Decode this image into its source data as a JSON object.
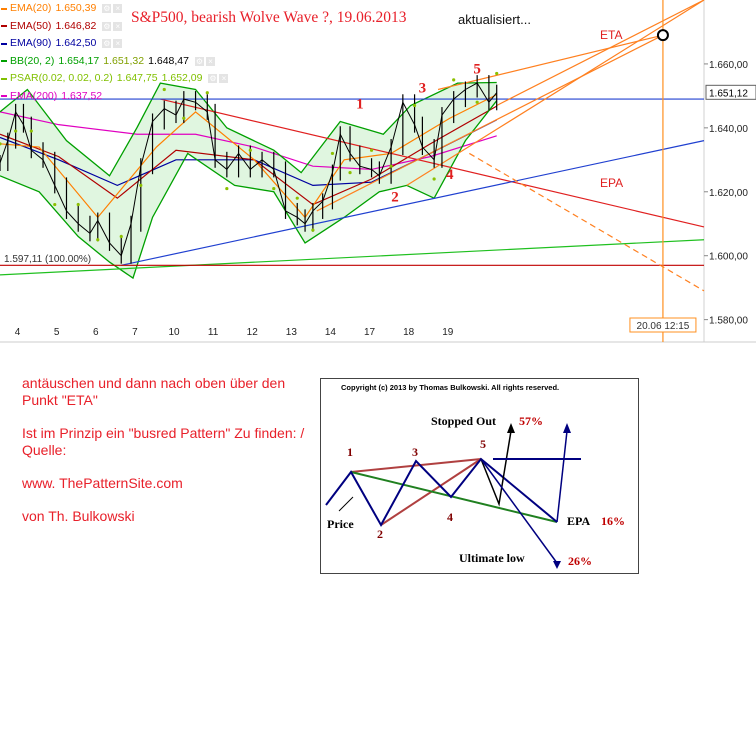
{
  "title": "S&P500, bearish Wolve Wave ?,  19.06.2013",
  "subtitle": "aktualisiert...",
  "legend": [
    {
      "name": "EMA(20)",
      "values": [
        "1.650,39"
      ],
      "color": "#ff7f00"
    },
    {
      "name": "EMA(50)",
      "values": [
        "1.646,82"
      ],
      "color": "#b00000"
    },
    {
      "name": "EMA(90)",
      "values": [
        "1.642,50"
      ],
      "color": "#0000a0"
    },
    {
      "name": "BB(20, 2)",
      "values": [
        "1.654,17",
        "1.651,32",
        "1.648,47"
      ],
      "color": "#00a000"
    },
    {
      "name": "PSAR(0.02, 0.02, 0.2)",
      "values": [
        "1.647,75",
        "1.652,09"
      ],
      "color": "#80c000"
    },
    {
      "name": "EMA(200)",
      "values": [
        "1.637,52"
      ],
      "color": "#e000c0"
    }
  ],
  "chart_data": {
    "type": "line",
    "x_ticks": [
      "4",
      "5",
      "6",
      "7",
      "10",
      "11",
      "12",
      "13",
      "14",
      "17",
      "18",
      "19"
    ],
    "y_ticks": [
      "1.660,00",
      "1.640,00",
      "1.620,00",
      "1.600,00",
      "1.580,00"
    ],
    "y_tick_values": [
      1660,
      1640,
      1620,
      1600,
      1580
    ],
    "ylim": [
      1573,
      1680
    ],
    "last_price_label": "1.651,12",
    "last_price": 1651.12,
    "low_label": "1.597,11 (100.00%)",
    "low_value": 1597.11,
    "time_marker_label": "20.06 12:15",
    "time_marker_x": 20.45,
    "labels": {
      "eta": "ETA",
      "epa": "EPA"
    },
    "close": [
      {
        "x": 3.5,
        "y": 1629
      },
      {
        "x": 3.7,
        "y": 1636
      },
      {
        "x": 3.9,
        "y": 1645
      },
      {
        "x": 4.1,
        "y": 1641
      },
      {
        "x": 4.3,
        "y": 1633
      },
      {
        "x": 4.6,
        "y": 1630
      },
      {
        "x": 4.9,
        "y": 1622
      },
      {
        "x": 5.2,
        "y": 1614
      },
      {
        "x": 5.5,
        "y": 1610
      },
      {
        "x": 5.8,
        "y": 1607
      },
      {
        "x": 6.0,
        "y": 1611
      },
      {
        "x": 6.3,
        "y": 1604
      },
      {
        "x": 6.6,
        "y": 1600
      },
      {
        "x": 6.85,
        "y": 1610
      },
      {
        "x": 7.1,
        "y": 1628
      },
      {
        "x": 7.4,
        "y": 1642
      },
      {
        "x": 7.7,
        "y": 1646
      },
      {
        "x": 8.0,
        "y": 1644
      },
      {
        "x": 8.2,
        "y": 1649
      },
      {
        "x": 8.5,
        "y": 1648
      },
      {
        "x": 8.8,
        "y": 1645
      },
      {
        "x": 9.0,
        "y": 1630
      },
      {
        "x": 9.3,
        "y": 1627
      },
      {
        "x": 9.6,
        "y": 1632
      },
      {
        "x": 9.9,
        "y": 1627
      },
      {
        "x": 10.2,
        "y": 1630
      },
      {
        "x": 10.5,
        "y": 1627
      },
      {
        "x": 10.8,
        "y": 1614
      },
      {
        "x": 11.1,
        "y": 1612
      },
      {
        "x": 11.3,
        "y": 1610
      },
      {
        "x": 11.5,
        "y": 1614
      },
      {
        "x": 11.75,
        "y": 1617
      },
      {
        "x": 12.0,
        "y": 1626
      },
      {
        "x": 12.2,
        "y": 1638
      },
      {
        "x": 12.45,
        "y": 1632
      },
      {
        "x": 12.7,
        "y": 1628
      },
      {
        "x": 13.0,
        "y": 1627
      },
      {
        "x": 13.2,
        "y": 1625
      },
      {
        "x": 13.5,
        "y": 1634
      },
      {
        "x": 13.8,
        "y": 1648
      },
      {
        "x": 14.1,
        "y": 1641
      },
      {
        "x": 14.3,
        "y": 1634
      },
      {
        "x": 14.6,
        "y": 1630
      },
      {
        "x": 14.8,
        "y": 1644
      },
      {
        "x": 15.1,
        "y": 1649
      },
      {
        "x": 15.4,
        "y": 1652
      },
      {
        "x": 15.7,
        "y": 1654
      },
      {
        "x": 16.0,
        "y": 1648
      },
      {
        "x": 16.2,
        "y": 1651
      }
    ],
    "overlays": [
      {
        "name": "EMA(200)",
        "color": "#e000c0",
        "points": [
          {
            "x": 3.5,
            "y": 1645
          },
          {
            "x": 5.0,
            "y": 1641
          },
          {
            "x": 7.0,
            "y": 1638
          },
          {
            "x": 8.5,
            "y": 1638
          },
          {
            "x": 10.0,
            "y": 1634
          },
          {
            "x": 11.5,
            "y": 1628
          },
          {
            "x": 13.0,
            "y": 1627
          },
          {
            "x": 14.5,
            "y": 1631
          },
          {
            "x": 16.2,
            "y": 1637.5
          }
        ]
      },
      {
        "name": "EMA(90)",
        "color": "#0000a0",
        "points": [
          {
            "x": 3.5,
            "y": 1637
          },
          {
            "x": 5.0,
            "y": 1630
          },
          {
            "x": 6.5,
            "y": 1622
          },
          {
            "x": 8.0,
            "y": 1630
          },
          {
            "x": 10.0,
            "y": 1630
          },
          {
            "x": 11.5,
            "y": 1622
          },
          {
            "x": 13.0,
            "y": 1623
          },
          {
            "x": 14.5,
            "y": 1632
          },
          {
            "x": 16.2,
            "y": 1642.5
          }
        ]
      },
      {
        "name": "EMA(50)",
        "color": "#b00000",
        "points": [
          {
            "x": 3.5,
            "y": 1638
          },
          {
            "x": 5.0,
            "y": 1631
          },
          {
            "x": 6.5,
            "y": 1618
          },
          {
            "x": 8.0,
            "y": 1633
          },
          {
            "x": 10.0,
            "y": 1630
          },
          {
            "x": 11.5,
            "y": 1616
          },
          {
            "x": 13.0,
            "y": 1624
          },
          {
            "x": 14.5,
            "y": 1635
          },
          {
            "x": 16.2,
            "y": 1646.8
          }
        ]
      },
      {
        "name": "EMA(20)",
        "color": "#ff7f00",
        "points": [
          {
            "x": 3.5,
            "y": 1635
          },
          {
            "x": 4.5,
            "y": 1634
          },
          {
            "x": 6.0,
            "y": 1612
          },
          {
            "x": 7.5,
            "y": 1634
          },
          {
            "x": 8.5,
            "y": 1645
          },
          {
            "x": 10.0,
            "y": 1630
          },
          {
            "x": 11.3,
            "y": 1612
          },
          {
            "x": 12.3,
            "y": 1630
          },
          {
            "x": 13.5,
            "y": 1632
          },
          {
            "x": 15.0,
            "y": 1643
          },
          {
            "x": 16.2,
            "y": 1650.4
          }
        ]
      },
      {
        "name": "BB(20, 2)",
        "color": "#00a000",
        "points": [
          {
            "x": 3.5,
            "y": 1645
          },
          {
            "x": 4.2,
            "y": 1652
          },
          {
            "x": 5.2,
            "y": 1636
          },
          {
            "x": 6.3,
            "y": 1625
          },
          {
            "x": 7.0,
            "y": 1640
          },
          {
            "x": 7.6,
            "y": 1654
          },
          {
            "x": 8.5,
            "y": 1652
          },
          {
            "x": 9.3,
            "y": 1640
          },
          {
            "x": 10.5,
            "y": 1633
          },
          {
            "x": 11.2,
            "y": 1626
          },
          {
            "x": 12.2,
            "y": 1642
          },
          {
            "x": 13.3,
            "y": 1638
          },
          {
            "x": 14.0,
            "y": 1647
          },
          {
            "x": 15.2,
            "y": 1654
          },
          {
            "x": 16.2,
            "y": 1654.2
          }
        ]
      },
      {
        "name": "BB(20, 2)",
        "color": "#00a000",
        "points": [
          {
            "x": 3.5,
            "y": 1625
          },
          {
            "x": 4.5,
            "y": 1620
          },
          {
            "x": 5.5,
            "y": 1606
          },
          {
            "x": 6.3,
            "y": 1598
          },
          {
            "x": 6.9,
            "y": 1593
          },
          {
            "x": 7.4,
            "y": 1612
          },
          {
            "x": 8.3,
            "y": 1632
          },
          {
            "x": 9.5,
            "y": 1622
          },
          {
            "x": 10.5,
            "y": 1620
          },
          {
            "x": 11.3,
            "y": 1604
          },
          {
            "x": 12.3,
            "y": 1612
          },
          {
            "x": 13.2,
            "y": 1620
          },
          {
            "x": 13.9,
            "y": 1622
          },
          {
            "x": 14.6,
            "y": 1618
          },
          {
            "x": 15.4,
            "y": 1636
          },
          {
            "x": 16.2,
            "y": 1648.5
          }
        ]
      }
    ],
    "trend_lines": [
      {
        "color": "#e02020",
        "dash": false,
        "from": {
          "x": 7.6,
          "y": 1649
        },
        "to": {
          "x": 21.5,
          "y": 1609
        }
      },
      {
        "color": "#2040d0",
        "dash": false,
        "from": {
          "x": 6.6,
          "y": 1597
        },
        "to": {
          "x": 21.5,
          "y": 1636
        }
      },
      {
        "color": "#20c020",
        "dash": false,
        "from": {
          "x": 3.5,
          "y": 1594
        },
        "to": {
          "x": 21.5,
          "y": 1605
        }
      },
      {
        "color": "#c00000",
        "dash": false,
        "from": {
          "x": 3.5,
          "y": 1597
        },
        "to": {
          "x": 21.5,
          "y": 1597
        }
      },
      {
        "color": "#2040d0",
        "dash": false,
        "from": {
          "x": 3.5,
          "y": 1649
        },
        "to": {
          "x": 21.5,
          "y": 1649
        }
      },
      {
        "color": "#ff8020",
        "dash": false,
        "from": {
          "x": 11.6,
          "y": 1614
        },
        "to": {
          "x": 20.45,
          "y": 1669
        }
      },
      {
        "color": "#ff8020",
        "dash": false,
        "from": {
          "x": 13.9,
          "y": 1622
        },
        "to": {
          "x": 21.5,
          "y": 1680
        }
      },
      {
        "color": "#ff8020",
        "dash": false,
        "from": {
          "x": 14.7,
          "y": 1652
        },
        "to": {
          "x": 20.45,
          "y": 1669
        }
      },
      {
        "color": "#ff8020",
        "dash": false,
        "from": {
          "x": 16.2,
          "y": 1647
        },
        "to": {
          "x": 21.5,
          "y": 1680
        }
      },
      {
        "color": "#ff8020",
        "dash": true,
        "from": {
          "x": 15.5,
          "y": 1632
        },
        "to": {
          "x": 21.5,
          "y": 1589
        }
      }
    ],
    "wave_labels": [
      {
        "text": "1",
        "x": 12.7,
        "y": 1646
      },
      {
        "text": "2",
        "x": 13.6,
        "y": 1617
      },
      {
        "text": "3",
        "x": 14.3,
        "y": 1651
      },
      {
        "text": "4",
        "x": 15.0,
        "y": 1624
      },
      {
        "text": "5",
        "x": 15.7,
        "y": 1657
      }
    ]
  },
  "notes": [
    "antäuschen und dann nach oben über den Punkt \"ETA\"",
    "Ist im Prinzip ein \"busred Pattern\" Zu finden: / Quelle:",
    "www. ThePatternSite.com",
    "von Th. Bulkowski"
  ],
  "bulkowski": {
    "copyright": "Copyright (c) 2013 by Thomas Bulkowski. All rights reserved.",
    "stopped_out": "Stopped Out",
    "stopped_pct": "57%",
    "price": "Price",
    "epa": "EPA",
    "epa_pct": "16%",
    "ultimate_low": "Ultimate low",
    "ultimate_pct": "26%",
    "points": [
      "1",
      "2",
      "3",
      "4",
      "5"
    ]
  }
}
